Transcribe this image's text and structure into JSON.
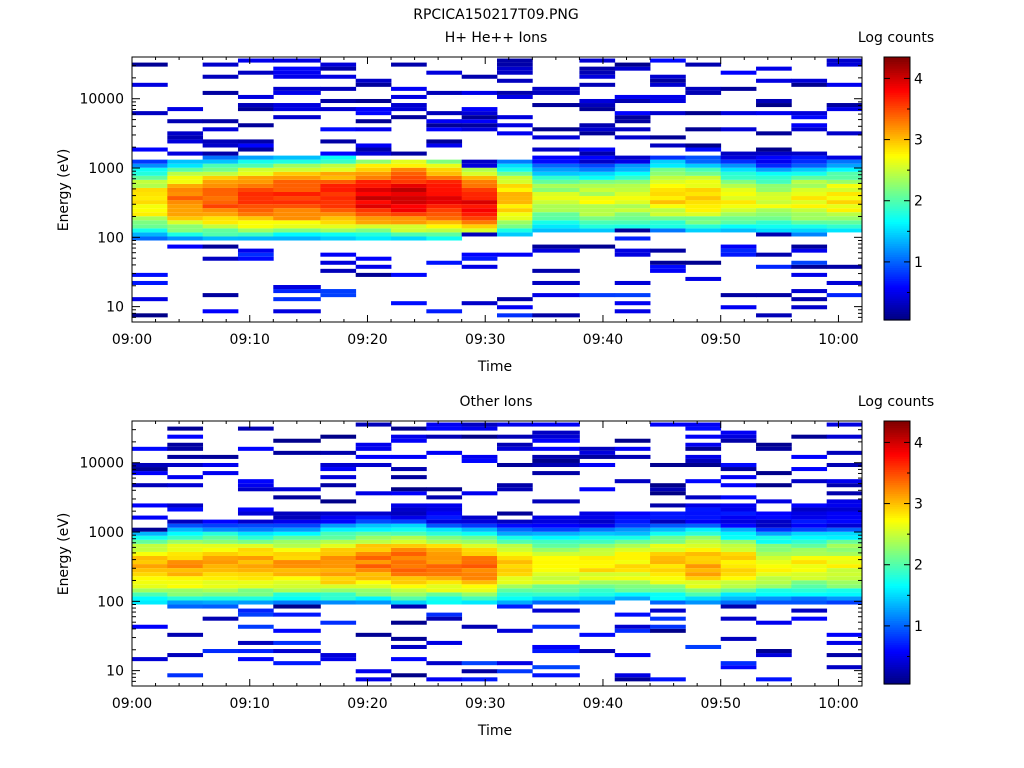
{
  "figure": {
    "title": "RPCICA150217T09.PNG"
  },
  "chart_data": [
    {
      "type": "heatmap",
      "title": "H+ He++ Ions",
      "xlabel": "Time",
      "ylabel": "Energy (eV)",
      "colorbar_label": "Log counts",
      "y_scale": "log",
      "ylim": [
        6,
        40000
      ],
      "xlim": [
        "09:00",
        "10:02"
      ],
      "x_tick_labels": [
        "09:00",
        "09:10",
        "09:20",
        "09:30",
        "09:40",
        "09:50",
        "10:00"
      ],
      "y_tick_labels": [
        "10",
        "100",
        "1000",
        "10000"
      ],
      "colorbar_range": [
        0.05,
        4.35
      ],
      "colorbar_ticks": [
        "1",
        "2",
        "3",
        "4"
      ],
      "colormap": [
        "#00007f",
        "#0000ff",
        "#007fff",
        "#00ffff",
        "#7fff7f",
        "#ffff00",
        "#ff7f00",
        "#ff0000",
        "#7f0000"
      ],
      "time_bins": [
        "09:00",
        "09:03",
        "09:06",
        "09:09",
        "09:12",
        "09:16",
        "09:19",
        "09:22",
        "09:25",
        "09:28",
        "09:31",
        "09:34",
        "09:38",
        "09:41",
        "09:44",
        "09:47",
        "09:50",
        "09:53",
        "09:56",
        "09:59"
      ],
      "core_energy_eV": [
        330,
        340,
        350,
        360,
        370,
        380,
        390,
        400,
        380,
        320,
        350,
        340,
        330,
        350,
        400,
        380,
        350,
        330,
        350,
        360
      ],
      "core_peak_log_counts": [
        2.9,
        3.3,
        3.5,
        3.6,
        3.6,
        3.7,
        3.9,
        4.0,
        3.9,
        3.8,
        3.0,
        2.5,
        2.6,
        2.6,
        2.9,
        2.9,
        2.7,
        2.6,
        2.7,
        2.8
      ],
      "low_energy_cutoff_eV": [
        95,
        90,
        90,
        90,
        85,
        85,
        85,
        85,
        85,
        110,
        100,
        110,
        110,
        130,
        110,
        110,
        110,
        120,
        100,
        110
      ],
      "high_energy_cutoff_eV": [
        1300,
        1400,
        1500,
        1500,
        1500,
        1500,
        1400,
        1400,
        1400,
        1000,
        1300,
        1500,
        1500,
        1600,
        1500,
        1600,
        1600,
        1600,
        1500,
        1500
      ]
    },
    {
      "type": "heatmap",
      "title": "Other Ions",
      "xlabel": "Time",
      "ylabel": "Energy (eV)",
      "colorbar_label": "Log counts",
      "y_scale": "log",
      "ylim": [
        6,
        40000
      ],
      "xlim": [
        "09:00",
        "10:02"
      ],
      "x_tick_labels": [
        "09:00",
        "09:10",
        "09:20",
        "09:30",
        "09:40",
        "09:50",
        "10:00"
      ],
      "y_tick_labels": [
        "10",
        "100",
        "1000",
        "10000"
      ],
      "colorbar_range": [
        0.05,
        4.35
      ],
      "colorbar_ticks": [
        "1",
        "2",
        "3",
        "4"
      ],
      "colormap": [
        "#00007f",
        "#0000ff",
        "#007fff",
        "#00ffff",
        "#7fff7f",
        "#ffff00",
        "#ff7f00",
        "#ff0000",
        "#7f0000"
      ],
      "time_bins": [
        "09:00",
        "09:03",
        "09:06",
        "09:09",
        "09:12",
        "09:16",
        "09:19",
        "09:22",
        "09:25",
        "09:28",
        "09:31",
        "09:34",
        "09:38",
        "09:41",
        "09:44",
        "09:47",
        "09:50",
        "09:53",
        "09:56",
        "09:59"
      ],
      "core_energy_eV": [
        300,
        310,
        320,
        320,
        330,
        330,
        340,
        340,
        320,
        300,
        310,
        320,
        320,
        330,
        330,
        340,
        330,
        320,
        330,
        330
      ],
      "core_peak_log_counts": [
        3.0,
        3.1,
        3.1,
        3.1,
        3.1,
        3.2,
        3.3,
        3.4,
        3.3,
        3.3,
        2.9,
        2.8,
        2.8,
        2.8,
        3.0,
        3.1,
        2.9,
        2.7,
        2.7,
        2.7
      ],
      "low_energy_cutoff_eV": [
        85,
        80,
        80,
        85,
        90,
        90,
        90,
        90,
        85,
        95,
        85,
        90,
        90,
        100,
        95,
        85,
        90,
        95,
        90,
        95
      ],
      "high_energy_cutoff_eV": [
        1000,
        1500,
        1500,
        1500,
        2000,
        2000,
        2000,
        2500,
        2500,
        1800,
        1300,
        1800,
        2000,
        2000,
        2000,
        2500,
        2500,
        2000,
        2500,
        2800
      ]
    }
  ]
}
